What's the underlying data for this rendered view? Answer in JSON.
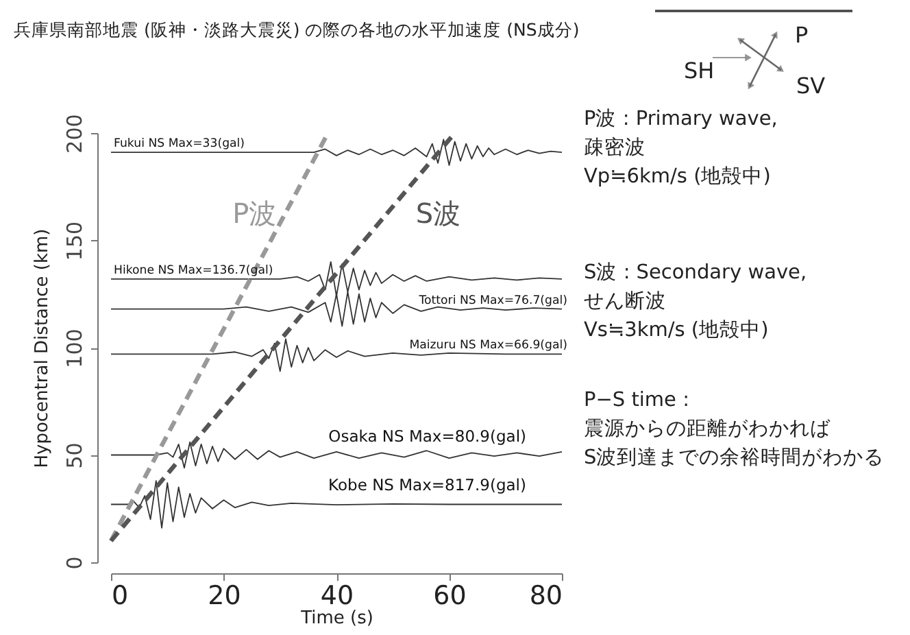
{
  "chart_data": {
    "type": "line",
    "title": "兵庫県南部地震 (阪神・淡路大震災) の際の各地の水平加速度 (NS成分)",
    "xlabel": "Time (s)",
    "ylabel": "Hypocentral Distance (km)",
    "xlim": [
      0,
      80
    ],
    "ylim": [
      0,
      200
    ],
    "xticks": [
      0,
      20,
      40,
      60,
      80
    ],
    "yticks": [
      0,
      50,
      100,
      150,
      200
    ],
    "grid": false,
    "annotations": [
      "P波 : Primary wave,\n疎密波\nVp≒6km/s (地殻中)",
      "S波 : Secondary wave,\nせん断波\nVs≒3km/s (地殻中)",
      "P−S time :\n震源からの距離がわかれば\nS波到達までの余裕時間がわかる",
      "SH",
      "P",
      "SV"
    ],
    "series": [
      {
        "name": "Fukui NS Max=33(gal)",
        "color": "#333333",
        "x": [
          0,
          10,
          20,
          30,
          36,
          38,
          40,
          42,
          44,
          46,
          48,
          50,
          52,
          54,
          56,
          57,
          58,
          59,
          60,
          61,
          62,
          63,
          64,
          65,
          66,
          67,
          68,
          70,
          72,
          74,
          76,
          78,
          80
        ],
        "values": [
          191,
          191,
          191,
          191,
          191,
          192.5,
          189.5,
          192,
          190,
          192.5,
          190,
          192,
          189.5,
          193,
          189,
          195,
          186,
          197,
          185,
          196,
          187,
          195,
          188,
          194,
          189,
          193,
          190,
          192.5,
          190,
          192,
          190.5,
          191.5,
          191
        ]
      },
      {
        "name": "Hikone NS Max=136.7(gal)",
        "color": "#333333",
        "x": [
          0,
          10,
          20,
          30,
          33,
          35,
          37,
          38,
          39,
          40,
          41,
          42,
          43,
          44,
          45,
          46,
          47,
          48,
          50,
          52,
          54,
          56,
          60,
          64,
          68,
          72,
          76,
          80
        ],
        "values": [
          132,
          132,
          132,
          132,
          133,
          131,
          134,
          127,
          140,
          124,
          139,
          126,
          137,
          127,
          136,
          129,
          135,
          130,
          134,
          131,
          133.5,
          131,
          133,
          131.5,
          132.5,
          131.5,
          132.5,
          132
        ]
      },
      {
        "name": "Tottori NS Max=76.7(gal)",
        "color": "#333333",
        "x": [
          0,
          10,
          20,
          24,
          28,
          32,
          35,
          38,
          39,
          40,
          41,
          42,
          43,
          44,
          45,
          46,
          47,
          48,
          50,
          52,
          55,
          58,
          62,
          66,
          70,
          75,
          80
        ],
        "values": [
          118,
          118,
          118,
          119,
          117,
          119,
          116.5,
          121,
          112,
          125,
          110,
          126,
          111,
          125,
          112,
          123,
          114,
          121,
          116,
          120,
          117,
          119,
          117.5,
          118.5,
          117.5,
          118.5,
          118
        ]
      },
      {
        "name": "Maizuru NS Max=66.9(gal)",
        "color": "#333333",
        "x": [
          0,
          10,
          18,
          22,
          25,
          27,
          28,
          29,
          30,
          31,
          32,
          33,
          34,
          35,
          36,
          38,
          40,
          42,
          45,
          50,
          55,
          60,
          70,
          80
        ],
        "values": [
          97,
          97,
          97,
          98,
          96,
          99,
          95,
          102,
          89,
          104,
          91,
          101,
          93,
          100,
          94,
          99,
          95.5,
          98.5,
          96,
          97.5,
          96.5,
          97.5,
          97,
          97
        ]
      },
      {
        "name": "Osaka NS Max=80.9(gal)",
        "color": "#333333",
        "x": [
          0,
          8,
          10,
          11,
          12,
          13,
          14,
          15,
          16,
          17,
          18,
          19,
          20,
          22,
          24,
          26,
          28,
          30,
          33,
          36,
          40,
          44,
          48,
          52,
          56,
          60,
          64,
          68,
          72,
          76,
          80
        ],
        "values": [
          50,
          50,
          51,
          49,
          55,
          44,
          56,
          45,
          55,
          46,
          54,
          47,
          53,
          48,
          52.5,
          48,
          52,
          49,
          51.5,
          48.5,
          51.5,
          48.5,
          51,
          49,
          52,
          48.5,
          51,
          49.5,
          51,
          49.5,
          51.5
        ]
      },
      {
        "name": "Kobe NS Max=817.9(gal)",
        "color": "#333333",
        "x": [
          0,
          3,
          4,
          5,
          6,
          7,
          8,
          9,
          10,
          11,
          12,
          13,
          14,
          15,
          16,
          18,
          20,
          22,
          25,
          28,
          32,
          40,
          50,
          60,
          70,
          80
        ],
        "values": [
          27,
          27,
          28.5,
          25.5,
          31,
          20,
          38,
          16,
          37,
          19,
          35,
          21,
          32,
          23,
          30,
          25,
          29,
          25.5,
          28,
          26.5,
          27.5,
          26.8,
          27.2,
          27,
          27,
          27
        ]
      },
      {
        "name": "P波",
        "color": "#999999",
        "line_style": "dashed",
        "x": [
          0,
          38.5
        ],
        "values": [
          10,
          200
        ]
      },
      {
        "name": "S波",
        "color": "#555555",
        "line_style": "dashed",
        "x": [
          0,
          61
        ],
        "values": [
          10,
          200
        ]
      }
    ]
  }
}
